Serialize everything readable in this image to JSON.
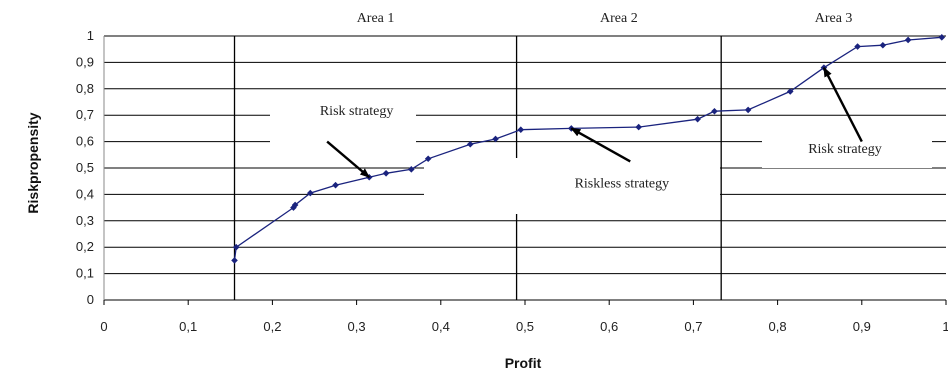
{
  "chart_data": {
    "type": "line",
    "title": "",
    "xlabel": "Profit",
    "ylabel": "Riskpropensity",
    "xlim": [
      0,
      1
    ],
    "ylim": [
      0,
      1
    ],
    "x_ticks": [
      "0",
      "0,1",
      "0,2",
      "0,3",
      "0,4",
      "0,5",
      "0,6",
      "0,7",
      "0,8",
      "0,9",
      "1"
    ],
    "y_ticks": [
      "0",
      "0,1",
      "0,2",
      "0,3",
      "0,4",
      "0,5",
      "0,6",
      "0,7",
      "0,8",
      "0,9",
      "1"
    ],
    "grid": "horizontal",
    "legend": "none",
    "color": "#1a237e",
    "series": [
      {
        "x": [
          0.155,
          0.157,
          0.225,
          0.227,
          0.245,
          0.275,
          0.315,
          0.335,
          0.365,
          0.385,
          0.435,
          0.465,
          0.495,
          0.555,
          0.635,
          0.705,
          0.725,
          0.765,
          0.815,
          0.855,
          0.895,
          0.925,
          0.955,
          0.995
        ],
        "y": [
          0.15,
          0.2,
          0.35,
          0.36,
          0.405,
          0.435,
          0.465,
          0.48,
          0.495,
          0.535,
          0.59,
          0.61,
          0.645,
          0.65,
          0.655,
          0.685,
          0.715,
          0.72,
          0.79,
          0.88,
          0.96,
          0.965,
          0.985,
          0.995
        ]
      }
    ],
    "dividers": [
      0.155,
      0.49,
      0.733
    ],
    "areas": [
      {
        "label": "Area 1",
        "x": 0.3225
      },
      {
        "label": "Area 2",
        "x": 0.6115
      },
      {
        "label": "Area 3",
        "x": 0.8665
      }
    ],
    "annotations": [
      {
        "text": "Risk strategy",
        "x": 0.3,
        "y": 0.72,
        "arrow_from": [
          0.265,
          0.6
        ],
        "arrow_to": [
          0.315,
          0.465
        ]
      },
      {
        "text": "Riskless strategy",
        "x": 0.615,
        "y": 0.445,
        "arrow_from": [
          0.625,
          0.525
        ],
        "arrow_to": [
          0.555,
          0.65
        ]
      },
      {
        "text": "Risk strategy",
        "x": 0.88,
        "y": 0.575,
        "arrow_from": [
          0.9,
          0.6
        ],
        "arrow_to": [
          0.855,
          0.88
        ]
      }
    ]
  }
}
